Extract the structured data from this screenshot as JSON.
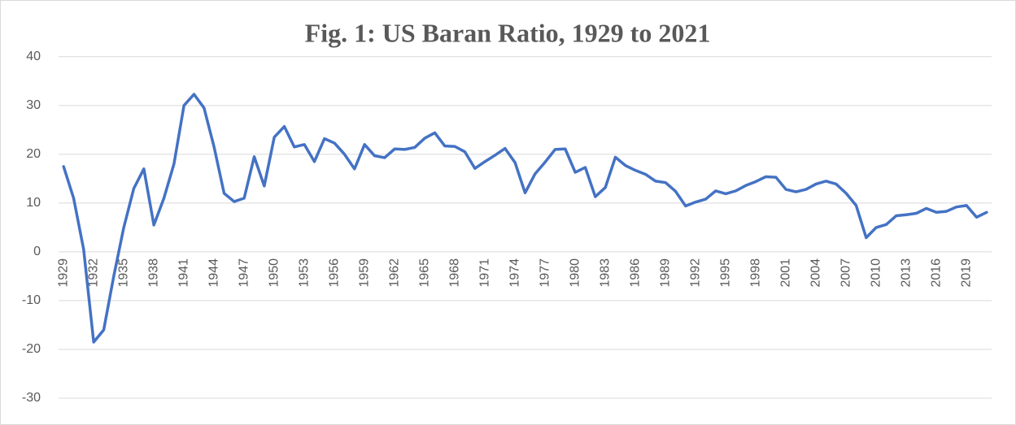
{
  "chart_data": {
    "type": "line",
    "title": "Fig. 1: US Baran Ratio, 1929 to 2021",
    "categories": [
      "1929",
      null,
      null,
      "1932",
      null,
      null,
      "1935",
      null,
      null,
      "1938",
      null,
      null,
      "1941",
      null,
      null,
      "1944",
      null,
      null,
      "1947",
      null,
      null,
      "1950",
      null,
      null,
      "1953",
      null,
      null,
      "1956",
      null,
      null,
      "1959",
      null,
      null,
      "1962",
      null,
      null,
      "1965",
      null,
      null,
      "1968",
      null,
      null,
      "1971",
      null,
      null,
      "1974",
      null,
      null,
      "1977",
      null,
      null,
      "1980",
      null,
      null,
      "1983",
      null,
      null,
      "1986",
      null,
      null,
      "1989",
      null,
      null,
      "1992",
      null,
      null,
      "1995",
      null,
      null,
      "1998",
      null,
      null,
      "2001",
      null,
      null,
      "2004",
      null,
      null,
      "2007",
      null,
      null,
      "2010",
      null,
      null,
      "2013",
      null,
      null,
      "2016",
      null,
      null,
      "2019",
      null,
      null
    ],
    "values": [
      17.5,
      11,
      0.5,
      -18.5,
      -16,
      -5,
      5,
      13,
      17,
      5.5,
      11,
      18,
      30,
      32.3,
      29.5,
      21.5,
      12,
      10.3,
      11,
      19.5,
      13.5,
      23.5,
      25.7,
      21.5,
      22,
      18.5,
      23.2,
      22.3,
      20,
      17,
      22,
      19.7,
      19.3,
      21.1,
      21,
      21.4,
      23.3,
      24.4,
      21.7,
      21.6,
      20.5,
      17.1,
      18.5,
      19.8,
      21.2,
      18.3,
      12.1,
      16,
      18.4,
      21,
      21.1,
      16.3,
      17.3,
      11.3,
      13.2,
      19.4,
      17.7,
      16.7,
      15.9,
      14.5,
      14.2,
      12.4,
      9.4,
      10.2,
      10.8,
      12.5,
      11.9,
      12.5,
      13.6,
      14.4,
      15.4,
      15.3,
      12.8,
      12.3,
      12.8,
      13.9,
      14.5,
      13.9,
      12,
      9.5,
      2.9,
      5,
      5.6,
      7.4,
      7.6,
      7.9,
      8.9,
      8.1,
      8.3,
      9.2,
      9.5,
      7.1,
      8.1
    ],
    "color": "#4472c4",
    "ylim": [
      -35,
      40
    ],
    "yticks": [
      -30,
      -20,
      -10,
      0,
      10,
      20,
      30,
      40
    ],
    "grid": true
  }
}
